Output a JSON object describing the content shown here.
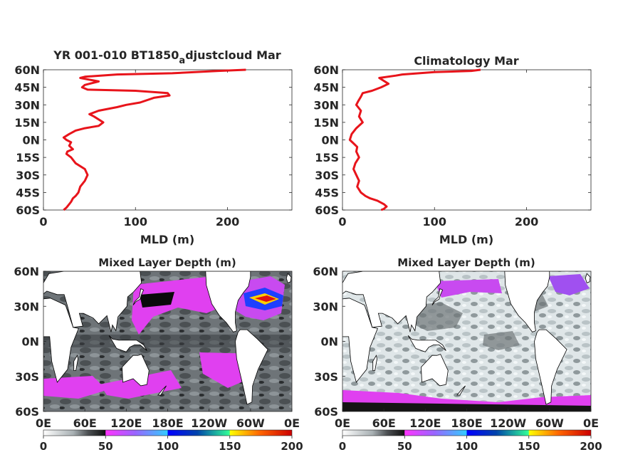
{
  "colors": {
    "profile_line": "#e8141b",
    "axis": "#262626",
    "land": "#ffffff",
    "colorbar_stops": [
      "#ffffff",
      "#a9b1b4",
      "#4c5053",
      "#111111",
      "#ff33ff",
      "#9966ff",
      "#33ccff",
      "#0000ff",
      "#33ff99",
      "#ffff00",
      "#ff6600",
      "#cc0000"
    ]
  },
  "chart_data": [
    {
      "type": "line",
      "title": "YR 001-010 BT1850",
      "title_subscript": "a",
      "title_suffix": "djustcloud Mar",
      "xlabel": "MLD (m)",
      "ylabel": "",
      "xlim": [
        0,
        270
      ],
      "ylim": [
        -60,
        60
      ],
      "xticks": [
        0,
        100,
        200
      ],
      "yticks": [
        60,
        45,
        30,
        15,
        0,
        -15,
        -30,
        -45,
        -60
      ],
      "ytick_labels": [
        "60N",
        "45N",
        "30N",
        "15N",
        "0N",
        "15S",
        "30S",
        "45S",
        "60S"
      ],
      "series": [
        {
          "x": [
            220,
            190,
            140,
            80,
            45,
            40,
            60,
            45,
            42,
            48,
            100,
            135,
            137,
            120,
            105,
            90,
            80,
            60,
            50,
            55,
            65,
            60,
            45,
            35,
            28,
            22,
            25,
            30,
            28,
            32,
            26,
            25,
            30,
            35,
            45,
            48,
            45,
            40,
            38,
            35,
            32,
            30,
            28,
            25,
            22
          ],
          "y": [
            60,
            59,
            57,
            56,
            54,
            53,
            50,
            47,
            45,
            43,
            42,
            40,
            38,
            36,
            32,
            30,
            28,
            25,
            22,
            20,
            15,
            12,
            10,
            8,
            5,
            2,
            0,
            -2,
            -5,
            -8,
            -10,
            -12,
            -15,
            -20,
            -25,
            -30,
            -35,
            -40,
            -45,
            -48,
            -50,
            -53,
            -55,
            -58,
            -60
          ]
        }
      ]
    },
    {
      "type": "line",
      "title": "Climatology Mar",
      "xlabel": "MLD (m)",
      "ylabel": "",
      "xlim": [
        0,
        270
      ],
      "ylim": [
        -60,
        60
      ],
      "xticks": [
        0,
        100,
        200
      ],
      "yticks": [
        60,
        45,
        30,
        15,
        0,
        -15,
        -30,
        -45,
        -60
      ],
      "ytick_labels": [
        "60N",
        "45N",
        "30N",
        "15N",
        "0N",
        "15S",
        "30S",
        "45S",
        "60S"
      ],
      "series": [
        {
          "x": [
            150,
            140,
            100,
            65,
            58,
            40,
            50,
            42,
            32,
            22,
            20,
            17,
            15,
            20,
            18,
            22,
            15,
            10,
            8,
            12,
            16,
            15,
            18,
            14,
            12,
            15,
            18,
            16,
            20,
            25,
            30,
            38,
            45,
            48,
            45,
            42
          ],
          "y": [
            60,
            59,
            58,
            56,
            55,
            53,
            48,
            45,
            42,
            40,
            37,
            33,
            30,
            25,
            20,
            15,
            10,
            5,
            0,
            -3,
            -6,
            -10,
            -15,
            -20,
            -25,
            -30,
            -35,
            -40,
            -45,
            -48,
            -50,
            -52,
            -55,
            -57,
            -59,
            -60
          ]
        }
      ]
    },
    {
      "type": "heatmap",
      "title": "Mixed Layer Depth (m)",
      "xtick_labels": [
        "0E",
        "60E",
        "120E",
        "180E",
        "120W",
        "60W",
        "0E"
      ],
      "ytick_labels": [
        "60N",
        "30N",
        "0N",
        "30S",
        "60S"
      ],
      "colorbar": {
        "min": 0,
        "max": 200,
        "tick_labels": [
          "0",
          "50",
          "100",
          "150",
          "200"
        ]
      }
    },
    {
      "type": "heatmap",
      "title": "Mixed Layer Depth (m)",
      "xtick_labels": [
        "0E",
        "60E",
        "120E",
        "180E",
        "120W",
        "60W",
        "0E"
      ],
      "ytick_labels": [
        "60N",
        "30N",
        "0N",
        "30S",
        "60S"
      ],
      "colorbar": {
        "min": 0,
        "max": 200,
        "tick_labels": [
          "0",
          "50",
          "100",
          "150",
          "200"
        ]
      }
    }
  ]
}
